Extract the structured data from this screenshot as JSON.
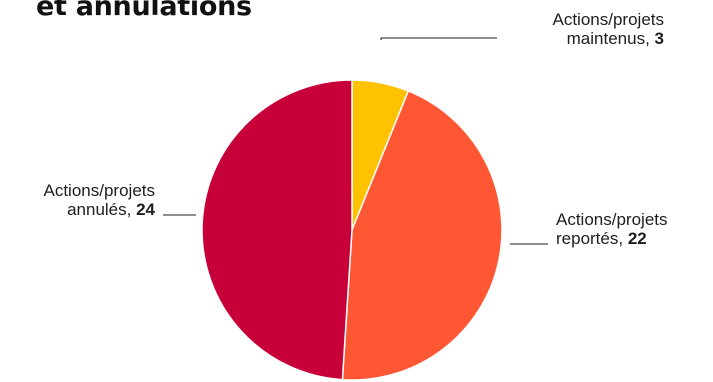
{
  "chart_data": {
    "type": "pie",
    "title": "et annulations",
    "slices": [
      {
        "label_line1": "Actions/projets",
        "label_line2": "maintenus,",
        "value": 3,
        "color": "#ffc200"
      },
      {
        "label_line1": "Actions/projets",
        "label_line2": "reportés,",
        "value": 22,
        "color": "#ff5733"
      },
      {
        "label_line1": "Actions/projets",
        "label_line2": "annulés,",
        "value": 24,
        "color": "#c70039"
      }
    ]
  }
}
